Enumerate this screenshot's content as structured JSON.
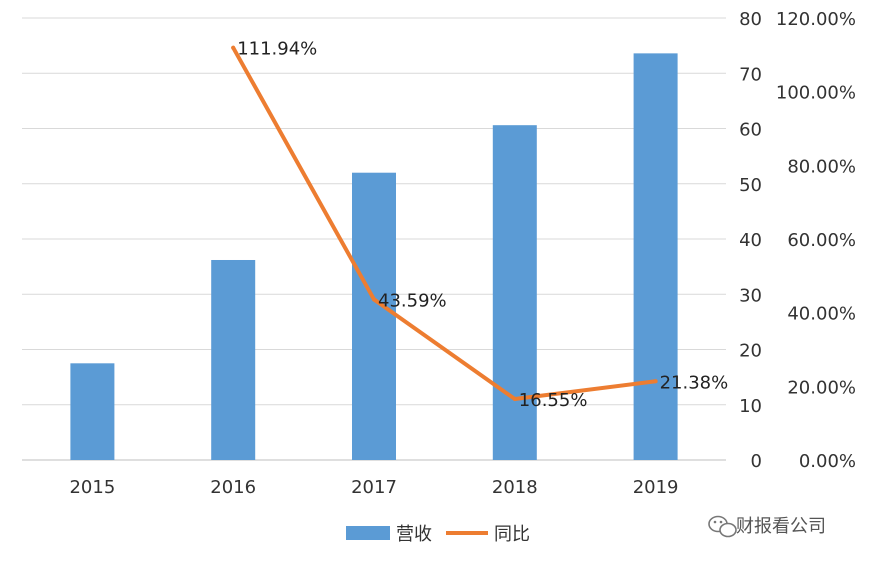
{
  "chart_data": {
    "type": "bar",
    "categories": [
      "2015",
      "2016",
      "2017",
      "2018",
      "2019"
    ],
    "series": [
      {
        "name": "营收",
        "type": "bar",
        "axis": "left",
        "values": [
          17.5,
          36.2,
          52.0,
          60.6,
          73.6
        ],
        "color": "#5b9bd5"
      },
      {
        "name": "同比",
        "type": "line",
        "axis": "right",
        "values": [
          null,
          111.94,
          43.59,
          16.55,
          21.38
        ],
        "labels": [
          "",
          "111.94%",
          "43.59%",
          "16.55%",
          "21.38%"
        ],
        "color": "#ed7d31"
      }
    ],
    "y_left": {
      "ylim": [
        0,
        80
      ],
      "ticks": [
        "0",
        "10",
        "20",
        "30",
        "40",
        "50",
        "60",
        "70",
        "80"
      ]
    },
    "y_right": {
      "ylim": [
        0,
        120
      ],
      "ticks": [
        "0.00%",
        "20.00%",
        "40.00%",
        "60.00%",
        "80.00%",
        "100.00%",
        "120.00%"
      ]
    },
    "grid": true,
    "legend_position": "bottom"
  },
  "watermark": {
    "text": "财报看公司",
    "icon": "wechat-icon"
  }
}
